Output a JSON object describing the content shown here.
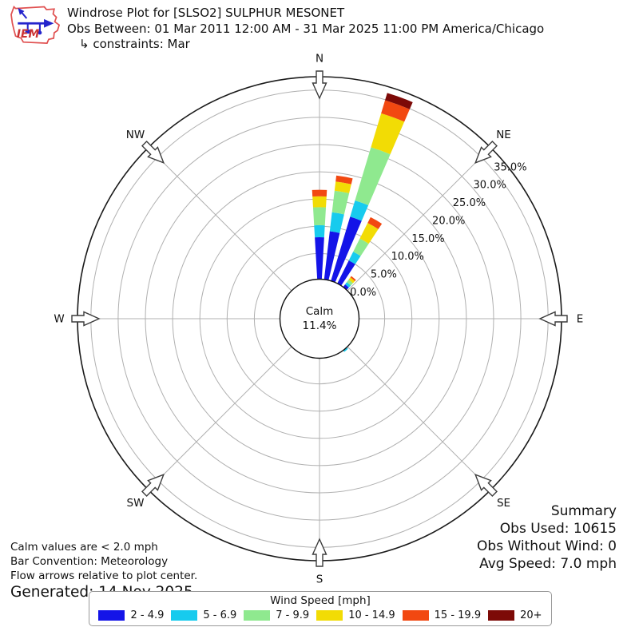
{
  "header": {
    "title": "Windrose Plot for [SLSO2] SULPHUR MESONET",
    "subtitle": "Obs Between: 01 Mar 2011 12:00 AM - 31 Mar 2025 11:00 PM America/Chicago",
    "constraints": "↳ constraints: Mar",
    "logo_text": "IEM"
  },
  "summary": {
    "heading": "Summary",
    "obs_used": "Obs Used: 10615",
    "obs_without_wind": "Obs Without Wind: 0",
    "avg_speed": "Avg Speed: 7.0 mph"
  },
  "footnotes": {
    "calm_note": "Calm values are < 2.0 mph",
    "convention_note": "Bar Convention: Meteorology",
    "arrows_note": "Flow arrows relative to plot center.",
    "generated": "Generated: 14 Nov 2025"
  },
  "legend": {
    "title": "Wind Speed [mph]",
    "bins": [
      {
        "label": "2 - 4.9",
        "color": "#1414e8"
      },
      {
        "label": "5 - 6.9",
        "color": "#17cbee"
      },
      {
        "label": "7 - 9.9",
        "color": "#8fe98f"
      },
      {
        "label": "10 - 14.9",
        "color": "#f2dc05"
      },
      {
        "label": "15 - 19.9",
        "color": "#f24811"
      },
      {
        "label": "20+",
        "color": "#7d0a07"
      }
    ]
  },
  "chart_data": {
    "type": "windrose",
    "units": "mph",
    "title": "Windrose Plot for [SLSO2] SULPHUR MESONET",
    "compass_labels": [
      "N",
      "NE",
      "E",
      "SE",
      "S",
      "SW",
      "W",
      "NW"
    ],
    "radial_ticks_pct": [
      0,
      5,
      10,
      15,
      20,
      25,
      30,
      35
    ],
    "radial_tick_labels": [
      "0.0%",
      "5.0%",
      "10.0%",
      "15.0%",
      "20.0%",
      "25.0%",
      "30.0%",
      "35.0%"
    ],
    "rmax_pct": 37.4,
    "grid": true,
    "calm": {
      "line1": "Calm",
      "line2": "11.4%"
    },
    "speed_bin_labels": [
      "2 - 4.9",
      "5 - 6.9",
      "7 - 9.9",
      "10 - 14.9",
      "15 - 19.9",
      "20+"
    ],
    "bars": [
      {
        "dir_deg": 0,
        "values_pct": [
          8.0,
          2.2,
          3.3,
          2.0,
          1.2,
          0
        ]
      },
      {
        "dir_deg": 10,
        "values_pct": [
          9.2,
          3.5,
          4.0,
          1.7,
          1.1,
          0
        ]
      },
      {
        "dir_deg": 20,
        "values_pct": [
          12.6,
          3.1,
          10.2,
          6.5,
          2.5,
          1.4
        ]
      },
      {
        "dir_deg": 30,
        "values_pct": [
          5.0,
          1.8,
          2.7,
          3.2,
          1.2,
          0
        ]
      },
      {
        "dir_deg": 40,
        "values_pct": [
          0.9,
          0.5,
          0.6,
          0.5,
          0.3,
          0
        ]
      },
      {
        "dir_deg": 140,
        "values_pct": [
          0.2,
          0.45,
          0,
          0,
          0,
          0
        ]
      }
    ]
  }
}
